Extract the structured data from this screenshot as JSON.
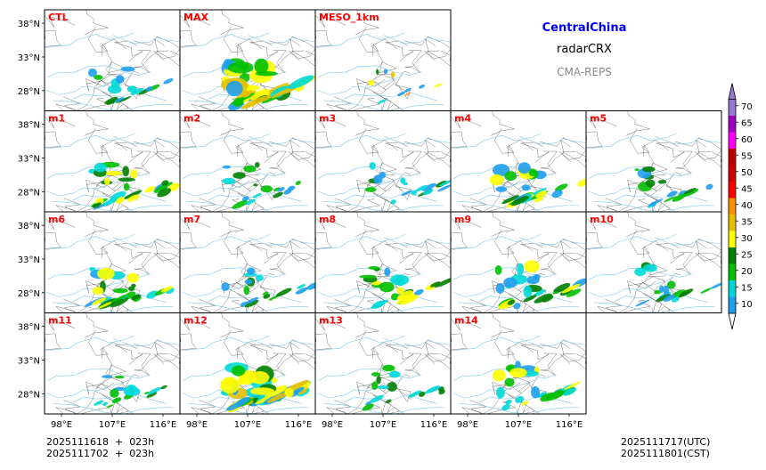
{
  "header": {
    "region": "CentralChina",
    "product": "radarCRX",
    "system": "CMA-REPS",
    "region_color": "#0000ff",
    "system_color": "#888888"
  },
  "footer": {
    "init_line1": "2025111618  +  023h",
    "init_line2": "2025111702  +  023h",
    "valid_utc": "2025111717(UTC)",
    "valid_cst": "2025111801(CST)"
  },
  "chart_data": {
    "type": "heatmap",
    "title": "radarCRX",
    "panels": [
      {
        "label": "CTL",
        "row": 0,
        "col": 0,
        "intensity": "low"
      },
      {
        "label": "MAX",
        "row": 0,
        "col": 1,
        "intensity": "high"
      },
      {
        "label": "MESO_1km",
        "row": 0,
        "col": 2,
        "intensity": "sparse"
      },
      {
        "label": "m1",
        "row": 1,
        "col": 0,
        "intensity": "medium"
      },
      {
        "label": "m2",
        "row": 1,
        "col": 1,
        "intensity": "low"
      },
      {
        "label": "m3",
        "row": 1,
        "col": 2,
        "intensity": "low"
      },
      {
        "label": "m4",
        "row": 1,
        "col": 3,
        "intensity": "medium"
      },
      {
        "label": "m5",
        "row": 1,
        "col": 4,
        "intensity": "low"
      },
      {
        "label": "m6",
        "row": 2,
        "col": 0,
        "intensity": "medium"
      },
      {
        "label": "m7",
        "row": 2,
        "col": 1,
        "intensity": "low"
      },
      {
        "label": "m8",
        "row": 2,
        "col": 2,
        "intensity": "medium"
      },
      {
        "label": "m9",
        "row": 2,
        "col": 3,
        "intensity": "medium"
      },
      {
        "label": "m10",
        "row": 2,
        "col": 4,
        "intensity": "low"
      },
      {
        "label": "m11",
        "row": 3,
        "col": 0,
        "intensity": "low"
      },
      {
        "label": "m12",
        "row": 3,
        "col": 1,
        "intensity": "high"
      },
      {
        "label": "m13",
        "row": 3,
        "col": 2,
        "intensity": "low"
      },
      {
        "label": "m14",
        "row": 3,
        "col": 3,
        "intensity": "medium"
      }
    ],
    "lat_ticks": [
      "38°N",
      "33°N",
      "28°N"
    ],
    "lon_ticks": [
      "98°E",
      "107°E",
      "116°E"
    ],
    "colorbar": {
      "levels": [
        10,
        15,
        20,
        25,
        30,
        35,
        40,
        45,
        50,
        55,
        60,
        65,
        70
      ],
      "labels": [
        "10",
        "15",
        "20",
        "25",
        "30",
        "35",
        "40",
        "45",
        "50",
        "55",
        "60",
        "65",
        "70"
      ],
      "colors": [
        "#1e9ef0",
        "#00d8d8",
        "#00c000",
        "#008000",
        "#ffff00",
        "#e6c000",
        "#ff9000",
        "#ff0000",
        "#d00000",
        "#c00000",
        "#ff00ff",
        "#a000c0",
        "#9878d0"
      ],
      "under_color": "#ffffff",
      "over_color": "#9878d0",
      "extend": "both"
    }
  }
}
